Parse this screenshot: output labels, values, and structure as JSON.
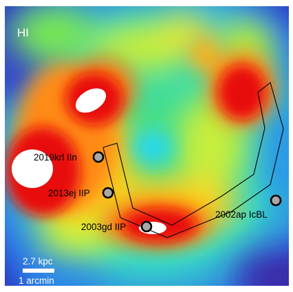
{
  "image_label": "HI",
  "scale_bar": {
    "physical": "2.7 kpc",
    "angular": "1 arcmin"
  },
  "supernovae": [
    {
      "name": "2019krl IIn"
    },
    {
      "name": "2013ej IIP"
    },
    {
      "name": "2003gd IIP"
    },
    {
      "name": "2002ap IcBL"
    }
  ],
  "colors": {
    "low": "#3a2aa8",
    "mid_low": "#28d7f0",
    "mid": "#46e07a",
    "mid_high": "#ffd21a",
    "high": "#e81010",
    "saturated": "#ffffff",
    "marker_fill": "#a8a8a8",
    "marker_stroke": "#000000",
    "aperture": "#000000"
  }
}
